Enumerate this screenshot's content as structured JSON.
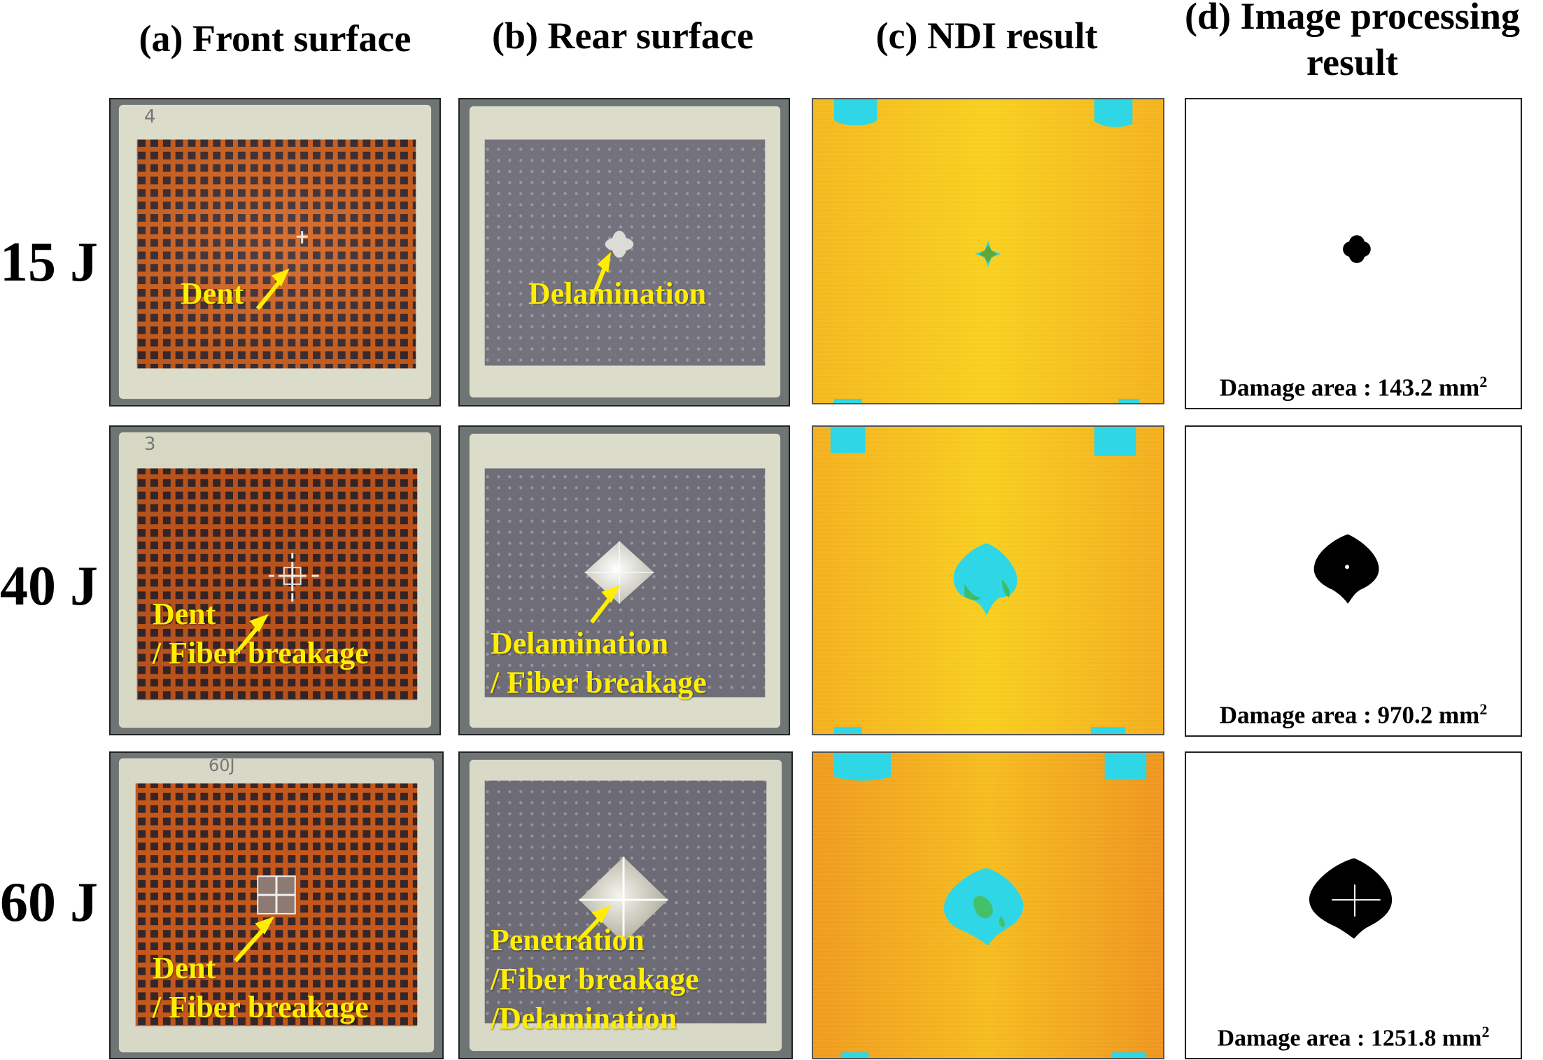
{
  "columns": {
    "a": "(a) Front surface",
    "b": "(b) Rear surface",
    "c": "(c) NDI result",
    "d_line1": "(d) Image processing",
    "d_line2": "result"
  },
  "rows": [
    {
      "energy": "15 J",
      "front_label": [
        "Dent"
      ],
      "rear_label": [
        "Delamination"
      ],
      "damage_area_prefix": "Damage area : 143.2 mm",
      "damage_area_sup": "2"
    },
    {
      "energy": "40 J",
      "front_label": [
        "Dent",
        "/ Fiber breakage"
      ],
      "rear_label": [
        "Delamination",
        "/ Fiber breakage"
      ],
      "damage_area_prefix": "Damage area : 970.2 mm",
      "damage_area_sup": "2"
    },
    {
      "energy": "60 J",
      "front_label": [
        "Dent",
        "/ Fiber breakage"
      ],
      "rear_label": [
        "Penetration",
        "/Fiber breakage",
        "/Delamination"
      ],
      "damage_area_prefix": "Damage area : 1251.8 mm",
      "damage_area_sup": "2"
    }
  ],
  "colors": {
    "label_yellow": "#ffee00",
    "grid_orange": "#d4621e",
    "panel_fr4": "#dcdccb",
    "ndi_yellow": "#f6c318",
    "ndi_cyan": "#2fd6e6",
    "rear_gray": "#73727c"
  }
}
